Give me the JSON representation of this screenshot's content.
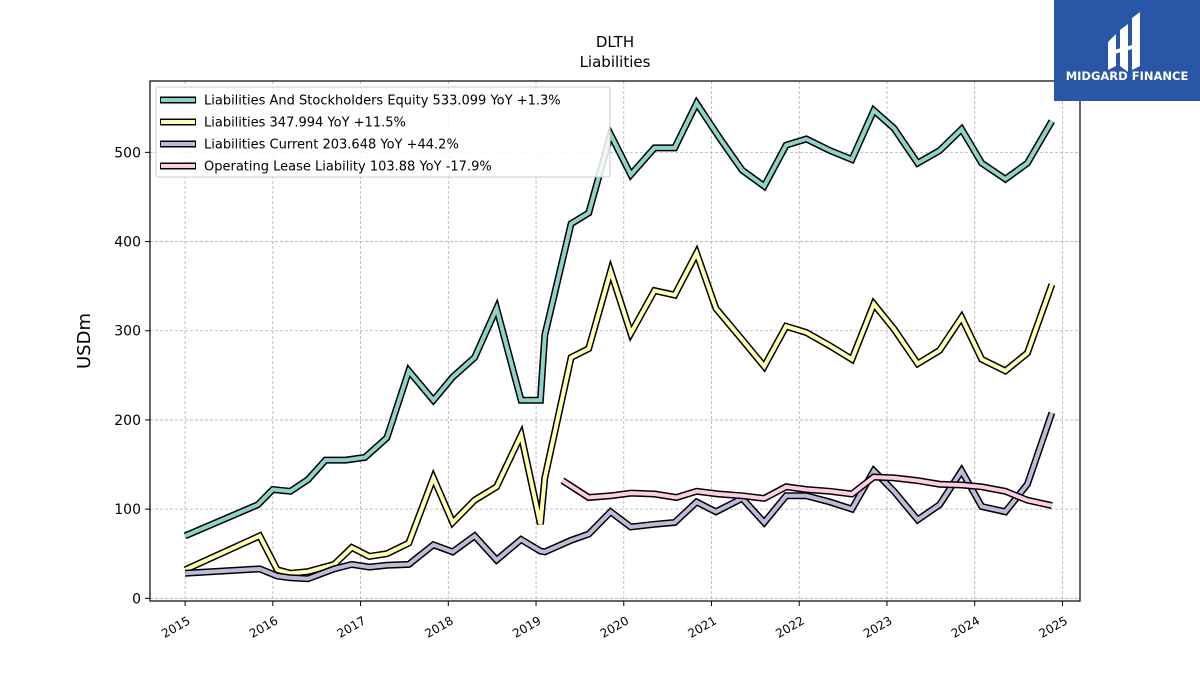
{
  "chart_data": {
    "type": "line",
    "title": "DLTH",
    "subtitle": "Liabilities",
    "ylabel": "USDm",
    "xlabel": "",
    "ylim": [
      -3,
      580
    ],
    "xlim": [
      2014.6,
      2025.2
    ],
    "yticks": [
      0,
      100,
      200,
      300,
      400,
      500
    ],
    "xticks": [
      2015,
      2016,
      2017,
      2018,
      2019,
      2020,
      2021,
      2022,
      2023,
      2024,
      2025
    ],
    "grid": true,
    "legend_position": "top-left",
    "series": [
      {
        "name": "Liabilities And Stockholders Equity  533.099 YoY +1.3%",
        "color": "#8dd3c7",
        "x": [
          2015.0,
          2015.83,
          2016.0,
          2016.2,
          2016.4,
          2016.6,
          2016.83,
          2017.05,
          2017.3,
          2017.55,
          2017.83,
          2018.05,
          2018.3,
          2018.55,
          2018.83,
          2019.05,
          2019.1,
          2019.4,
          2019.6,
          2019.85,
          2020.08,
          2020.35,
          2020.58,
          2020.83,
          2021.1,
          2021.35,
          2021.6,
          2021.85,
          2022.08,
          2022.35,
          2022.6,
          2022.85,
          2023.08,
          2023.35,
          2023.6,
          2023.85,
          2024.08,
          2024.35,
          2024.6,
          2024.88
        ],
        "y": [
          70,
          105,
          122,
          120,
          133,
          155,
          155,
          158,
          180,
          255,
          222,
          248,
          270,
          325,
          222,
          222,
          295,
          420,
          432,
          520,
          475,
          505,
          505,
          555,
          515,
          480,
          462,
          508,
          515,
          502,
          492,
          547,
          527,
          488,
          502,
          526,
          488,
          470,
          488,
          535
        ]
      },
      {
        "name": "Liabilities  347.994 YoY +11.5%",
        "color": "#ffffb3",
        "x": [
          2015.0,
          2015.85,
          2016.05,
          2016.2,
          2016.4,
          2016.7,
          2016.9,
          2017.1,
          2017.3,
          2017.55,
          2017.83,
          2018.05,
          2018.3,
          2018.55,
          2018.83,
          2019.05,
          2019.1,
          2019.4,
          2019.6,
          2019.85,
          2020.08,
          2020.35,
          2020.58,
          2020.83,
          2021.05,
          2021.35,
          2021.6,
          2021.85,
          2022.08,
          2022.35,
          2022.6,
          2022.85,
          2023.08,
          2023.35,
          2023.6,
          2023.85,
          2024.08,
          2024.35,
          2024.6,
          2024.88
        ],
        "y": [
          32,
          70,
          32,
          28,
          30,
          38,
          57,
          47,
          50,
          62,
          135,
          85,
          110,
          125,
          183,
          83,
          135,
          270,
          280,
          367,
          297,
          345,
          340,
          387,
          325,
          290,
          260,
          305,
          298,
          283,
          268,
          330,
          302,
          263,
          278,
          315,
          268,
          255,
          275,
          352
        ]
      },
      {
        "name": "Liabilities Current  203.648 YoY +44.2%",
        "color": "#bebada",
        "x": [
          2015.0,
          2015.85,
          2016.05,
          2016.2,
          2016.4,
          2016.7,
          2016.9,
          2017.1,
          2017.3,
          2017.55,
          2017.83,
          2018.05,
          2018.3,
          2018.55,
          2018.83,
          2019.05,
          2019.1,
          2019.4,
          2019.6,
          2019.85,
          2020.08,
          2020.35,
          2020.58,
          2020.83,
          2021.05,
          2021.35,
          2021.6,
          2021.85,
          2022.08,
          2022.35,
          2022.6,
          2022.85,
          2023.08,
          2023.35,
          2023.6,
          2023.85,
          2024.08,
          2024.35,
          2024.6,
          2024.88
        ],
        "y": [
          28,
          33,
          25,
          23,
          22,
          33,
          38,
          35,
          37,
          38,
          60,
          52,
          70,
          43,
          66,
          53,
          52,
          65,
          72,
          97,
          80,
          83,
          85,
          108,
          97,
          112,
          85,
          115,
          115,
          108,
          100,
          143,
          120,
          88,
          105,
          143,
          103,
          97,
          128,
          208
        ]
      },
      {
        "name": "Operating Lease Liability  103.88 YoY -17.9%",
        "color": "#fccde5",
        "x": [
          2019.3,
          2019.6,
          2019.85,
          2020.08,
          2020.35,
          2020.6,
          2020.83,
          2021.08,
          2021.35,
          2021.6,
          2021.85,
          2022.08,
          2022.35,
          2022.6,
          2022.85,
          2023.08,
          2023.35,
          2023.6,
          2023.85,
          2024.08,
          2024.35,
          2024.6,
          2024.88
        ],
        "y": [
          132,
          113,
          115,
          118,
          117,
          113,
          120,
          117,
          115,
          112,
          125,
          122,
          120,
          117,
          136,
          135,
          132,
          128,
          127,
          125,
          120,
          110,
          104
        ]
      }
    ]
  },
  "logo": {
    "text": "MIDGARD FINANCE",
    "background": "#2a56a8"
  }
}
